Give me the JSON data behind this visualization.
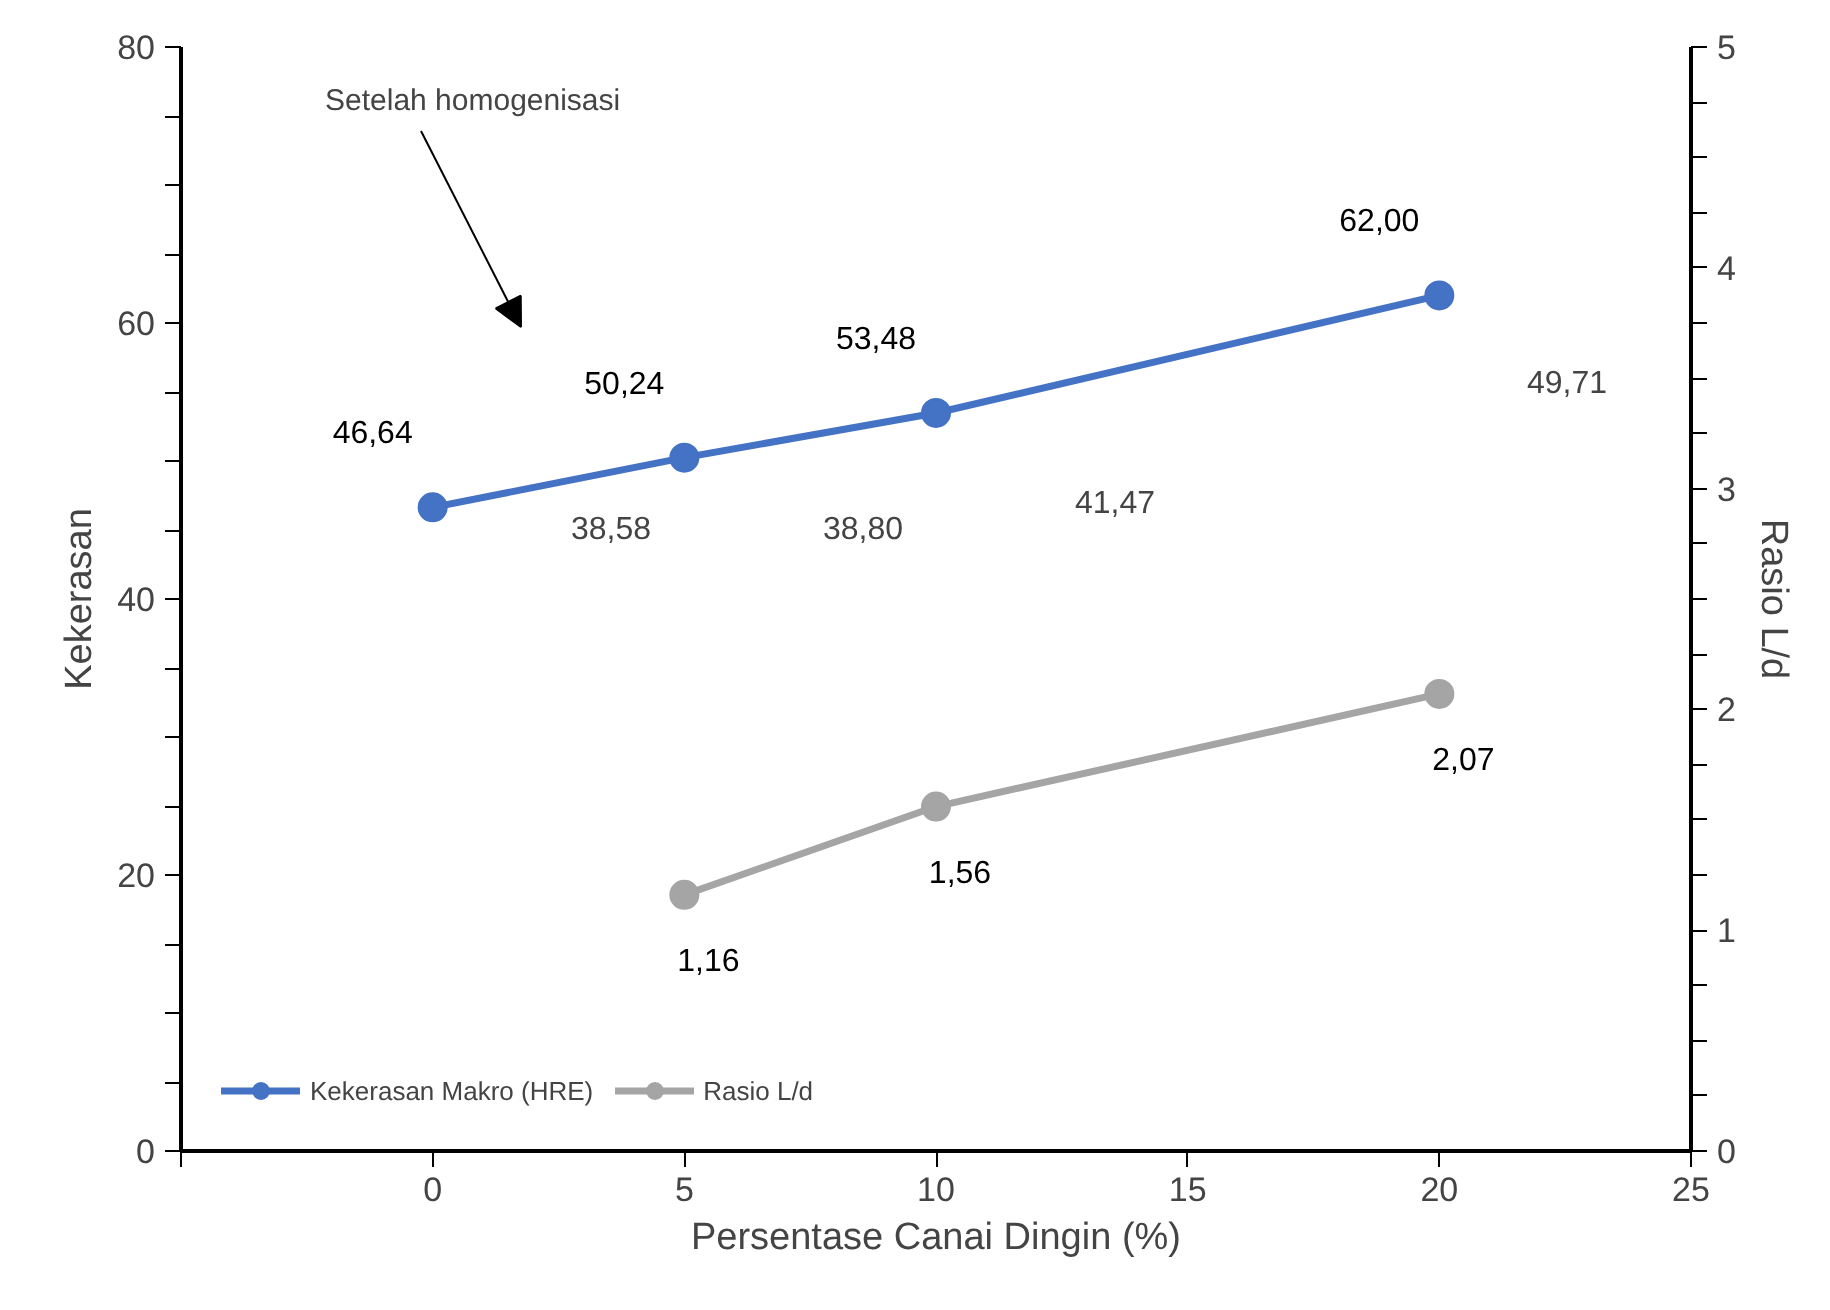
{
  "chart_data": {
    "type": "line",
    "xlabel": "Persentase Canai Dingin (%)",
    "ylabel": "Kekerasan",
    "y2label": "Rasio L/d",
    "x": [
      0,
      5,
      10,
      20
    ],
    "xlim": [
      -5,
      25
    ],
    "xticks": [
      {
        "value": -5,
        "label": null
      },
      0,
      5,
      10,
      15,
      20,
      25
    ],
    "ylim": [
      0,
      80
    ],
    "yticks": [
      0,
      {
        "value": 5,
        "label": null
      },
      {
        "value": 10,
        "label": null
      },
      {
        "value": 15,
        "label": null
      },
      20,
      {
        "value": 25,
        "label": null
      },
      {
        "value": 30,
        "label": null
      },
      {
        "value": 35,
        "label": null
      },
      40,
      {
        "value": 45,
        "label": null
      },
      {
        "value": 50,
        "label": null
      },
      {
        "value": 55,
        "label": null
      },
      60,
      {
        "value": 65,
        "label": null
      },
      {
        "value": 70,
        "label": null
      },
      {
        "value": 75,
        "label": null
      },
      80
    ],
    "y2lim": [
      0,
      5
    ],
    "y2ticks": [
      0,
      {
        "value": 0.25,
        "label": null
      },
      {
        "value": 0.5,
        "label": null
      },
      {
        "value": 0.75,
        "label": null
      },
      1,
      {
        "value": 1.25,
        "label": null
      },
      {
        "value": 1.5,
        "label": null
      },
      {
        "value": 1.75,
        "label": null
      },
      2,
      {
        "value": 2.25,
        "label": null
      },
      {
        "value": 2.5,
        "label": null
      },
      {
        "value": 2.75,
        "label": null
      },
      3,
      {
        "value": 3.25,
        "label": null
      },
      {
        "value": 3.5,
        "label": null
      },
      {
        "value": 3.75,
        "label": null
      },
      4,
      {
        "value": 4.25,
        "label": null
      },
      {
        "value": 4.5,
        "label": null
      },
      {
        "value": 4.75,
        "label": null
      },
      5
    ],
    "series": [
      {
        "name": "Kekerasan Makro (HRE)",
        "color": "#4472c4",
        "values": [
          46.64,
          50.24,
          53.48,
          62.0
        ],
        "value_labels": [
          "46,64",
          "50,24",
          "53,48",
          "62,00"
        ]
      },
      {
        "name": "Rasio L/d",
        "color": "#a5a5a5",
        "axis": "y2",
        "x": [
          5,
          10,
          20
        ],
        "values": [
          1.16,
          1.56,
          2.07
        ],
        "value_labels": [
          "1,16",
          "1,56",
          "2,07"
        ]
      }
    ],
    "annotations": [
      "Setelah homogenisasi",
      "38,58",
      "38,80",
      "41,47",
      "49,71"
    ],
    "grid": false,
    "legend": "bottom left",
    "marker": "circle",
    "line_style": "solid"
  }
}
